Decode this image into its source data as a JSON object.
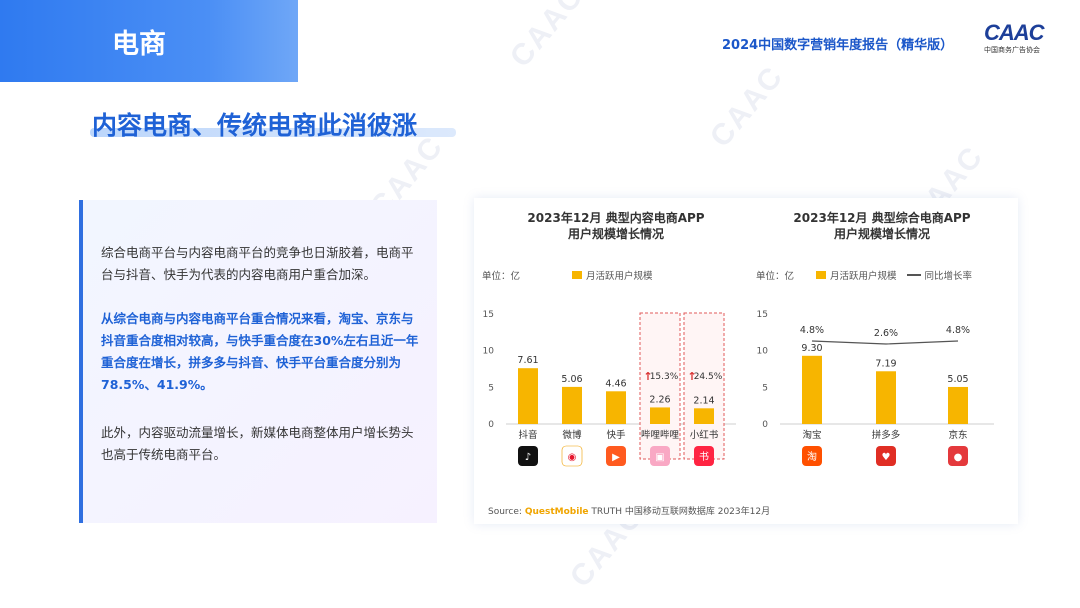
{
  "header": {
    "section_label": "电商",
    "report_title": "2024中国数字营销年度报告（精华版）",
    "logo_text": "CAAC",
    "logo_sub": "中国商务广告协会",
    "watermark": "CAAC"
  },
  "headline": "内容电商、传统电商此消彼涨",
  "text_panel": {
    "p1": "综合电商平台与内容电商平台的竞争也日渐胶着，电商平台与抖音、快手为代表的内容电商用户重合加深。",
    "p2": "从综合电商与内容电商平台重合情况来看，淘宝、京东与抖音重合度相对较高，与快手重合度在30%左右且近一年重合度在增长，拼多多与抖音、快手平台重合度分别为78.5%、41.9%。",
    "p3": "此外，内容驱动流量增长，新媒体电商整体用户增长势头也高于传统电商平台。"
  },
  "source": {
    "label": "Source:",
    "brand": "QuestMobile",
    "rest": "TRUTH 中国移动互联网数据库 2023年12月"
  },
  "colors": {
    "bar": "#f7b500",
    "accent": "#1f62d6",
    "highlight_border": "#e05a5a",
    "growth_arrow": "#d93030"
  },
  "chart_data": [
    {
      "type": "bar",
      "title_line1": "2023年12月 典型内容电商APP",
      "title_line2": "用户规模增长情况",
      "unit": "单位：亿",
      "legend": [
        "月活跃用户规模"
      ],
      "categories": [
        "抖音",
        "微博",
        "快手",
        "哔哩哔哩",
        "小红书"
      ],
      "icons": [
        "douyin-icon",
        "weibo-icon",
        "kuaishou-icon",
        "bilibili-icon",
        "xiaohongshu-icon"
      ],
      "series": [
        {
          "name": "月活跃用户规模",
          "values": [
            7.61,
            5.06,
            4.46,
            2.26,
            2.14
          ]
        }
      ],
      "value_labels": [
        "7.61",
        "5.06",
        "4.46",
        "2.26",
        "2.14"
      ],
      "highlights": [
        {
          "category": "哔哩哔哩",
          "growth": "15.3%"
        },
        {
          "category": "小红书",
          "growth": "24.5%"
        }
      ],
      "ylim": [
        0,
        15
      ],
      "yticks": [
        0,
        5,
        10,
        15
      ]
    },
    {
      "type": "bar",
      "title_line1": "2023年12月 典型综合电商APP",
      "title_line2": "用户规模增长情况",
      "unit": "单位：亿",
      "legend": [
        "月活跃用户规模",
        "同比增长率"
      ],
      "categories": [
        "淘宝",
        "拼多多",
        "京东"
      ],
      "icons": [
        "taobao-icon",
        "pinduoduo-icon",
        "jd-icon"
      ],
      "series": [
        {
          "name": "月活跃用户规模",
          "values": [
            9.3,
            7.19,
            5.05
          ]
        },
        {
          "name": "同比增长率",
          "values": [
            4.8,
            2.6,
            4.8
          ]
        }
      ],
      "value_labels": [
        "9.30",
        "7.19",
        "5.05"
      ],
      "growth_labels": [
        "4.8%",
        "2.6%",
        "4.8%"
      ],
      "ylim": [
        0,
        15
      ],
      "yticks": [
        0,
        5,
        10,
        15
      ]
    }
  ]
}
